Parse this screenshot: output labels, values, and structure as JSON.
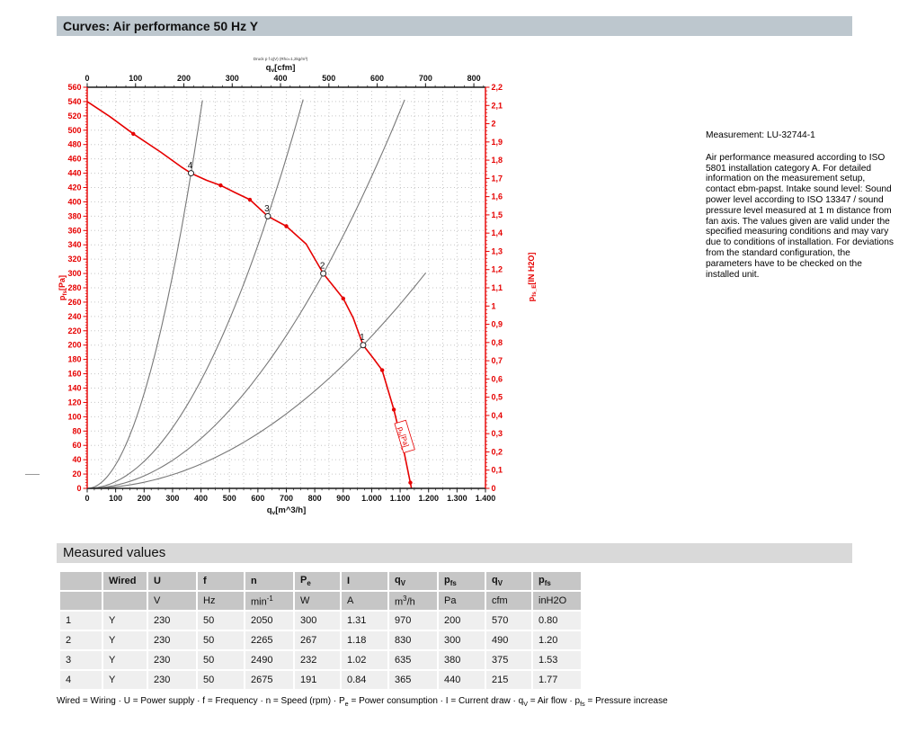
{
  "title_bar": {
    "title": "Curves: Air performance 50 Hz Y"
  },
  "colors": {
    "title_bar_bg": "#bdc7ce",
    "section_bar_bg": "#d9d9d9",
    "table_header_bg": "#c6c6c6",
    "table_row_bg": "#efefef",
    "curve_red": "#e60000",
    "axis_black": "#1a1a1a",
    "grid": "#c6c6c6",
    "system_curve": "#787878"
  },
  "side_panel": {
    "measurement": "Measurement: LU-32744-1",
    "description": "Air performance measured according to ISO 5801 installation category A. For detailed information on the measurement setup, contact ebm-papst. Intake sound level: Sound power level according to ISO 13347 / sound pressure level measured at 1 m distance from fan axis. The values given are valid under the specified measuring conditions and may vary due to conditions of installation. For deviations from the standard configuration, the parameters have to be checked on the installed unit."
  },
  "chart_data": {
    "type": "line",
    "note": "Druck p f q(V) (Rho=1,2kg/m³)",
    "axes": {
      "bottom": {
        "label": "q~v~[m^3/h]",
        "min": 0,
        "max": 1400,
        "major_step": 100,
        "minor_step": 25,
        "tick_labels": [
          "0",
          "100",
          "200",
          "300",
          "400",
          "500",
          "600",
          "700",
          "800",
          "900",
          "1.000",
          "1.100",
          "1.200",
          "1.300",
          "1.400"
        ]
      },
      "top": {
        "label": "q~v~[cfm]",
        "min": 0,
        "max": 800,
        "major_step": 100,
        "minor_step": 20,
        "cfm_per_m3h": 0.58858
      },
      "left": {
        "label": "p~fs~[Pa]",
        "min": 0,
        "max": 560,
        "major_step": 20,
        "minor_step": 4
      },
      "right": {
        "label": "p~fs_E~[IN H2O]",
        "min": 0,
        "max": 2.2,
        "major_step": 0.1,
        "minor_step": 0.02
      }
    },
    "fan_curve": {
      "name": "p~fs~[Pa]",
      "points": [
        [
          0,
          540
        ],
        [
          80,
          519
        ],
        [
          162,
          495
        ],
        [
          260,
          469
        ],
        [
          330,
          449
        ],
        [
          365,
          440
        ],
        [
          420,
          430
        ],
        [
          469,
          423
        ],
        [
          520,
          413
        ],
        [
          572,
          403
        ],
        [
          635,
          380
        ],
        [
          700,
          366
        ],
        [
          770,
          341
        ],
        [
          830,
          300
        ],
        [
          900,
          265
        ],
        [
          935,
          238
        ],
        [
          970,
          200
        ],
        [
          1005,
          182
        ],
        [
          1037,
          165
        ],
        [
          1078,
          110
        ],
        [
          1111,
          56
        ],
        [
          1140,
          0
        ]
      ],
      "marker_points": [
        [
          162,
          495
        ],
        [
          469,
          423
        ],
        [
          572,
          403
        ],
        [
          700,
          366
        ],
        [
          900,
          265
        ],
        [
          1037,
          165
        ],
        [
          1078,
          110
        ],
        [
          1111,
          56
        ],
        [
          1136,
          8
        ]
      ]
    },
    "operating_points": [
      {
        "id": "1",
        "q_m3h": 970,
        "p_pa": 200
      },
      {
        "id": "2",
        "q_m3h": 830,
        "p_pa": 300
      },
      {
        "id": "3",
        "q_m3h": 635,
        "p_pa": 380
      },
      {
        "id": "4",
        "q_m3h": 365,
        "p_pa": 440
      }
    ],
    "system_curves": [
      {
        "through_q": 970,
        "through_p": 200,
        "q_end": 1190
      },
      {
        "through_q": 830,
        "through_p": 300,
        "q_end": 1116
      },
      {
        "through_q": 635,
        "through_p": 380,
        "q_end": 759
      },
      {
        "through_q": 365,
        "through_p": 440,
        "q_end": 405
      }
    ],
    "curve_label": {
      "text": "p~fs~[Pa]",
      "q": 1113,
      "p": 72,
      "angle": 73
    }
  },
  "measured_values": {
    "section_title": "Measured values",
    "columns": [
      "",
      "Wired",
      "U",
      "f",
      "n",
      "P~e~",
      "I",
      "q~V~",
      "p~fs~",
      "q~V~",
      "p~fs~"
    ],
    "units": [
      "",
      "",
      "V",
      "Hz",
      "min^-1^",
      "W",
      "A",
      "m^3^/h",
      "Pa",
      "cfm",
      "inH2O"
    ],
    "rows": [
      [
        "1",
        "Y",
        "230",
        "50",
        "2050",
        "300",
        "1.31",
        "970",
        "200",
        "570",
        "0.80"
      ],
      [
        "2",
        "Y",
        "230",
        "50",
        "2265",
        "267",
        "1.18",
        "830",
        "300",
        "490",
        "1.20"
      ],
      [
        "3",
        "Y",
        "230",
        "50",
        "2490",
        "232",
        "1.02",
        "635",
        "380",
        "375",
        "1.53"
      ],
      [
        "4",
        "Y",
        "230",
        "50",
        "2675",
        "191",
        "0.84",
        "365",
        "440",
        "215",
        "1.77"
      ]
    ],
    "footer": "Wired = Wiring · U = Power supply · f = Frequency · n = Speed (rpm) · P~e~ = Power consumption · I = Current draw · q~V~ = Air flow · p~fs~ = Pressure increase"
  }
}
